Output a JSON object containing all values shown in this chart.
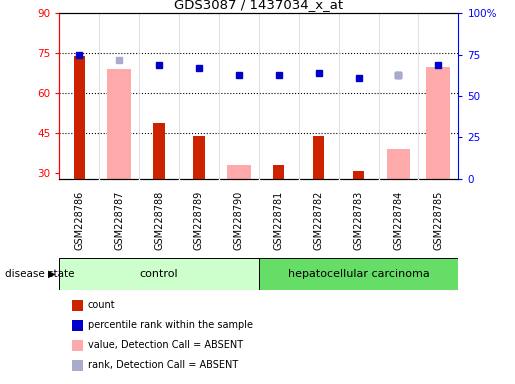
{
  "title": "GDS3087 / 1437034_x_at",
  "samples": [
    "GSM228786",
    "GSM228787",
    "GSM228788",
    "GSM228789",
    "GSM228790",
    "GSM228781",
    "GSM228782",
    "GSM228783",
    "GSM228784",
    "GSM228785"
  ],
  "count_values": [
    74,
    null,
    49,
    44,
    null,
    33,
    44,
    31,
    null,
    null
  ],
  "value_absent": [
    null,
    69,
    null,
    null,
    33,
    null,
    null,
    null,
    39,
    70
  ],
  "percentile_rank": [
    75,
    null,
    69,
    67,
    63,
    63,
    64,
    61,
    63,
    69
  ],
  "rank_absent": [
    null,
    72,
    null,
    null,
    null,
    null,
    null,
    null,
    63,
    null
  ],
  "ylim_left": [
    28,
    90
  ],
  "ylim_right": [
    0,
    100
  ],
  "yticks_left": [
    30,
    45,
    60,
    75,
    90
  ],
  "yticks_right": [
    0,
    25,
    50,
    75,
    100
  ],
  "yticklabels_right": [
    "0",
    "25",
    "50",
    "75",
    "100%"
  ],
  "hgrid_lines": [
    75,
    60,
    45
  ],
  "color_count": "#cc2200",
  "color_percentile": "#0000cc",
  "color_value_absent": "#ffaaaa",
  "color_rank_absent": "#aaaacc",
  "color_control_bg": "#ccffcc",
  "color_hcc_bg": "#66dd66",
  "color_xtick_bg": "#cccccc",
  "color_plot_bg": "#ffffff",
  "n_control": 5,
  "n_hcc": 5,
  "legend_labels": [
    "count",
    "percentile rank within the sample",
    "value, Detection Call = ABSENT",
    "rank, Detection Call = ABSENT"
  ],
  "legend_colors": [
    "#cc2200",
    "#0000cc",
    "#ffaaaa",
    "#aaaacc"
  ]
}
